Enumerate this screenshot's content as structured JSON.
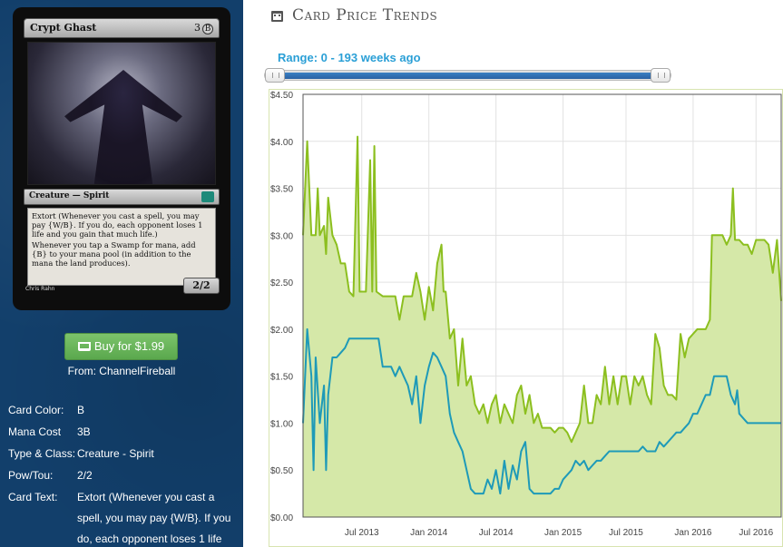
{
  "card": {
    "name": "Crypt Ghast",
    "cost": "3",
    "cost_symbol": "B",
    "type_line": "Creature — Spirit",
    "rules_1": "Extort (Whenever you cast a spell, you may pay {W/B}. If you do, each opponent loses 1 life and you gain that much life.)",
    "rules_2": "Whenever you tap a Swamp for mana, add {B} to your mana pool (in addition to the mana the land produces).",
    "power_toughness": "2/2",
    "artist": "Chris Rahn"
  },
  "buy": {
    "label": "Buy for $1.99",
    "from": "From: ChannelFireball"
  },
  "attributes": [
    {
      "label": "Card Color:",
      "value": "B"
    },
    {
      "label": "Mana Cost",
      "value": "3B"
    },
    {
      "label": "Type & Class:",
      "value": "Creature - Spirit"
    },
    {
      "label": "Pow/Tou:",
      "value": "2/2"
    }
  ],
  "card_text": {
    "label": "Card Text:",
    "value": "Extort (Whenever you cast a spell, you may pay {W/B}. If you do, each opponent loses 1 life"
  },
  "panel": {
    "title": "Card Price Trends",
    "range_label": "Range: 0 - 193 weeks ago"
  },
  "colors": {
    "sidebar": "#123f6b",
    "fair_line": "#8cbf1f",
    "fair_fill": "#d5e8a8",
    "buy_line": "#1e9ab8",
    "accent": "#2a9fd6"
  },
  "chart_data": {
    "type": "line",
    "title": "",
    "ylim": [
      0,
      4.5
    ],
    "yticks": [
      "$0.00",
      "$0.50",
      "$1.00",
      "$1.50",
      "$2.00",
      "$2.50",
      "$3.00",
      "$3.50",
      "$4.00",
      "$4.50"
    ],
    "xticks": [
      {
        "label": "Jul 2013",
        "t": 0.14
      },
      {
        "label": "Jan 2014",
        "t": 0.3
      },
      {
        "label": "Jul 2014",
        "t": 0.46
      },
      {
        "label": "Jan 2015",
        "t": 0.62
      },
      {
        "label": "Jul 2015",
        "t": 0.77
      },
      {
        "label": "Jan 2016",
        "t": 0.93
      },
      {
        "label": "Jul 2016",
        "t": 1.08
      }
    ],
    "grid": true,
    "series": [
      {
        "points": [
          [
            0.0,
            3.0
          ],
          [
            0.01,
            4.0
          ],
          [
            0.015,
            3.5
          ],
          [
            0.02,
            3.0
          ],
          [
            0.03,
            3.0
          ],
          [
            0.035,
            3.5
          ],
          [
            0.04,
            3.0
          ],
          [
            0.05,
            3.1
          ],
          [
            0.055,
            2.8
          ],
          [
            0.06,
            3.4
          ],
          [
            0.07,
            3.0
          ],
          [
            0.08,
            2.9
          ],
          [
            0.09,
            2.7
          ],
          [
            0.1,
            2.7
          ],
          [
            0.11,
            2.4
          ],
          [
            0.12,
            2.35
          ],
          [
            0.13,
            4.05
          ],
          [
            0.135,
            2.4
          ],
          [
            0.14,
            2.4
          ],
          [
            0.15,
            2.4
          ],
          [
            0.16,
            3.8
          ],
          [
            0.165,
            2.4
          ],
          [
            0.17,
            3.95
          ],
          [
            0.175,
            2.4
          ],
          [
            0.19,
            2.35
          ],
          [
            0.21,
            2.35
          ],
          [
            0.22,
            2.35
          ],
          [
            0.23,
            2.1
          ],
          [
            0.24,
            2.35
          ],
          [
            0.25,
            2.35
          ],
          [
            0.26,
            2.35
          ],
          [
            0.27,
            2.6
          ],
          [
            0.28,
            2.4
          ],
          [
            0.29,
            2.1
          ],
          [
            0.3,
            2.45
          ],
          [
            0.31,
            2.2
          ],
          [
            0.32,
            2.7
          ],
          [
            0.33,
            2.9
          ],
          [
            0.335,
            2.4
          ],
          [
            0.34,
            2.4
          ],
          [
            0.35,
            1.9
          ],
          [
            0.36,
            2.0
          ],
          [
            0.37,
            1.4
          ],
          [
            0.38,
            1.9
          ],
          [
            0.39,
            1.4
          ],
          [
            0.4,
            1.5
          ],
          [
            0.41,
            1.2
          ],
          [
            0.42,
            1.1
          ],
          [
            0.43,
            1.2
          ],
          [
            0.44,
            1.0
          ],
          [
            0.45,
            1.2
          ],
          [
            0.46,
            1.3
          ],
          [
            0.47,
            1.0
          ],
          [
            0.48,
            1.2
          ],
          [
            0.49,
            1.1
          ],
          [
            0.5,
            1.0
          ],
          [
            0.51,
            1.3
          ],
          [
            0.52,
            1.4
          ],
          [
            0.53,
            1.1
          ],
          [
            0.54,
            1.3
          ],
          [
            0.55,
            1.0
          ],
          [
            0.56,
            1.1
          ],
          [
            0.57,
            0.95
          ],
          [
            0.58,
            0.95
          ],
          [
            0.59,
            0.95
          ],
          [
            0.6,
            0.9
          ],
          [
            0.61,
            0.95
          ],
          [
            0.62,
            0.95
          ],
          [
            0.63,
            0.9
          ],
          [
            0.64,
            0.8
          ],
          [
            0.65,
            0.9
          ],
          [
            0.66,
            1.0
          ],
          [
            0.67,
            1.4
          ],
          [
            0.68,
            1.0
          ],
          [
            0.69,
            1.0
          ],
          [
            0.7,
            1.3
          ],
          [
            0.71,
            1.2
          ],
          [
            0.72,
            1.6
          ],
          [
            0.73,
            1.2
          ],
          [
            0.74,
            1.5
          ],
          [
            0.75,
            1.2
          ],
          [
            0.76,
            1.5
          ],
          [
            0.77,
            1.5
          ],
          [
            0.78,
            1.2
          ],
          [
            0.79,
            1.5
          ],
          [
            0.8,
            1.4
          ],
          [
            0.81,
            1.5
          ],
          [
            0.82,
            1.3
          ],
          [
            0.83,
            1.2
          ],
          [
            0.84,
            1.95
          ],
          [
            0.85,
            1.8
          ],
          [
            0.86,
            1.4
          ],
          [
            0.87,
            1.3
          ],
          [
            0.88,
            1.3
          ],
          [
            0.89,
            1.25
          ],
          [
            0.9,
            1.95
          ],
          [
            0.91,
            1.7
          ],
          [
            0.92,
            1.9
          ],
          [
            0.93,
            1.95
          ],
          [
            0.94,
            2.0
          ],
          [
            0.95,
            2.0
          ],
          [
            0.96,
            2.0
          ],
          [
            0.97,
            2.1
          ],
          [
            0.975,
            3.0
          ],
          [
            0.98,
            3.0
          ],
          [
            0.99,
            3.0
          ],
          [
            1.0,
            3.0
          ],
          [
            1.01,
            2.9
          ],
          [
            1.02,
            3.0
          ],
          [
            1.025,
            3.5
          ],
          [
            1.03,
            2.95
          ],
          [
            1.04,
            2.95
          ],
          [
            1.05,
            2.9
          ],
          [
            1.06,
            2.9
          ],
          [
            1.07,
            2.8
          ],
          [
            1.08,
            2.95
          ],
          [
            1.09,
            2.95
          ],
          [
            1.1,
            2.95
          ],
          [
            1.11,
            2.9
          ],
          [
            1.12,
            2.6
          ],
          [
            1.13,
            2.95
          ],
          [
            1.14,
            2.3
          ]
        ]
      },
      {
        "points": [
          [
            0.0,
            1.0
          ],
          [
            0.01,
            2.0
          ],
          [
            0.02,
            1.5
          ],
          [
            0.025,
            0.5
          ],
          [
            0.03,
            1.7
          ],
          [
            0.04,
            1.0
          ],
          [
            0.05,
            1.4
          ],
          [
            0.055,
            0.5
          ],
          [
            0.06,
            1.3
          ],
          [
            0.07,
            1.7
          ],
          [
            0.08,
            1.7
          ],
          [
            0.09,
            1.75
          ],
          [
            0.1,
            1.8
          ],
          [
            0.11,
            1.9
          ],
          [
            0.12,
            1.9
          ],
          [
            0.13,
            1.9
          ],
          [
            0.14,
            1.9
          ],
          [
            0.15,
            1.9
          ],
          [
            0.16,
            1.9
          ],
          [
            0.17,
            1.9
          ],
          [
            0.18,
            1.9
          ],
          [
            0.19,
            1.6
          ],
          [
            0.2,
            1.6
          ],
          [
            0.21,
            1.6
          ],
          [
            0.22,
            1.5
          ],
          [
            0.23,
            1.6
          ],
          [
            0.24,
            1.5
          ],
          [
            0.25,
            1.4
          ],
          [
            0.26,
            1.2
          ],
          [
            0.27,
            1.5
          ],
          [
            0.28,
            1.0
          ],
          [
            0.29,
            1.4
          ],
          [
            0.3,
            1.6
          ],
          [
            0.31,
            1.75
          ],
          [
            0.32,
            1.7
          ],
          [
            0.33,
            1.6
          ],
          [
            0.34,
            1.5
          ],
          [
            0.35,
            1.1
          ],
          [
            0.36,
            0.9
          ],
          [
            0.37,
            0.8
          ],
          [
            0.38,
            0.7
          ],
          [
            0.39,
            0.5
          ],
          [
            0.4,
            0.3
          ],
          [
            0.41,
            0.25
          ],
          [
            0.42,
            0.25
          ],
          [
            0.43,
            0.25
          ],
          [
            0.44,
            0.4
          ],
          [
            0.45,
            0.3
          ],
          [
            0.46,
            0.5
          ],
          [
            0.47,
            0.25
          ],
          [
            0.48,
            0.6
          ],
          [
            0.49,
            0.3
          ],
          [
            0.5,
            0.55
          ],
          [
            0.51,
            0.4
          ],
          [
            0.52,
            0.7
          ],
          [
            0.53,
            0.8
          ],
          [
            0.54,
            0.3
          ],
          [
            0.55,
            0.25
          ],
          [
            0.56,
            0.25
          ],
          [
            0.57,
            0.25
          ],
          [
            0.58,
            0.25
          ],
          [
            0.59,
            0.25
          ],
          [
            0.6,
            0.3
          ],
          [
            0.61,
            0.3
          ],
          [
            0.62,
            0.4
          ],
          [
            0.63,
            0.45
          ],
          [
            0.64,
            0.5
          ],
          [
            0.65,
            0.6
          ],
          [
            0.66,
            0.55
          ],
          [
            0.67,
            0.6
          ],
          [
            0.68,
            0.5
          ],
          [
            0.69,
            0.55
          ],
          [
            0.7,
            0.6
          ],
          [
            0.71,
            0.6
          ],
          [
            0.72,
            0.65
          ],
          [
            0.73,
            0.7
          ],
          [
            0.74,
            0.7
          ],
          [
            0.75,
            0.7
          ],
          [
            0.76,
            0.7
          ],
          [
            0.77,
            0.7
          ],
          [
            0.78,
            0.7
          ],
          [
            0.79,
            0.7
          ],
          [
            0.8,
            0.7
          ],
          [
            0.81,
            0.75
          ],
          [
            0.82,
            0.7
          ],
          [
            0.83,
            0.7
          ],
          [
            0.84,
            0.7
          ],
          [
            0.85,
            0.8
          ],
          [
            0.86,
            0.75
          ],
          [
            0.87,
            0.8
          ],
          [
            0.88,
            0.85
          ],
          [
            0.89,
            0.9
          ],
          [
            0.9,
            0.9
          ],
          [
            0.91,
            0.95
          ],
          [
            0.92,
            1.0
          ],
          [
            0.93,
            1.1
          ],
          [
            0.94,
            1.1
          ],
          [
            0.95,
            1.2
          ],
          [
            0.96,
            1.3
          ],
          [
            0.97,
            1.3
          ],
          [
            0.98,
            1.5
          ],
          [
            0.99,
            1.5
          ],
          [
            1.0,
            1.5
          ],
          [
            1.01,
            1.5
          ],
          [
            1.02,
            1.3
          ],
          [
            1.03,
            1.2
          ],
          [
            1.035,
            1.35
          ],
          [
            1.04,
            1.1
          ],
          [
            1.05,
            1.05
          ],
          [
            1.06,
            1.0
          ],
          [
            1.08,
            1.0
          ],
          [
            1.1,
            1.0
          ],
          [
            1.12,
            1.0
          ],
          [
            1.14,
            1.0
          ]
        ]
      }
    ]
  }
}
